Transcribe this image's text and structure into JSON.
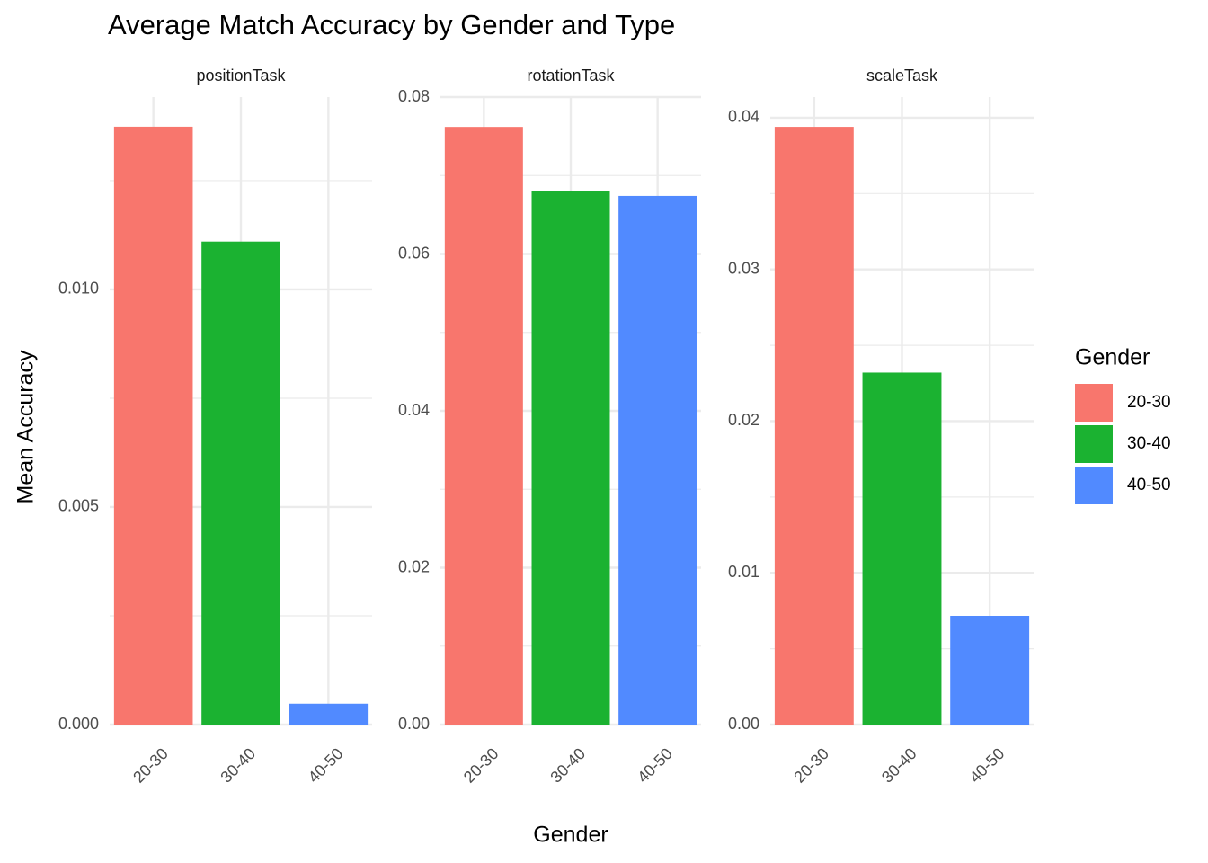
{
  "chart_data": {
    "type": "bar",
    "title": "Average Match Accuracy by Gender and Type",
    "x_label": "Gender",
    "y_label": "Mean Accuracy",
    "legend_title": "Gender",
    "categories": [
      "20-30",
      "30-40",
      "40-50"
    ],
    "colors": [
      "#f8766d",
      "#1bb231",
      "#518aff"
    ],
    "grid": true,
    "facets": [
      {
        "name": "positionTask",
        "values": [
          0.01374,
          0.0111,
          0.00048
        ],
        "ylim": [
          0,
          0.01442
        ],
        "yticks": [
          {
            "value": 0,
            "label": "0.000"
          },
          {
            "value": 0.005,
            "label": "0.005"
          },
          {
            "value": 0.01,
            "label": "0.010"
          }
        ]
      },
      {
        "name": "rotationTask",
        "values": [
          0.0762,
          0.068,
          0.0674
        ],
        "ylim": [
          0,
          0.08
        ],
        "yticks": [
          {
            "value": 0,
            "label": "0.00"
          },
          {
            "value": 0.02,
            "label": "0.02"
          },
          {
            "value": 0.04,
            "label": "0.04"
          },
          {
            "value": 0.06,
            "label": "0.06"
          },
          {
            "value": 0.08,
            "label": "0.08"
          }
        ]
      },
      {
        "name": "scaleTask",
        "values": [
          0.0394,
          0.0232,
          0.00717
        ],
        "ylim": [
          0,
          0.04136
        ],
        "yticks": [
          {
            "value": 0,
            "label": "0.00"
          },
          {
            "value": 0.01,
            "label": "0.01"
          },
          {
            "value": 0.02,
            "label": "0.02"
          },
          {
            "value": 0.03,
            "label": "0.03"
          },
          {
            "value": 0.04,
            "label": "0.04"
          }
        ]
      }
    ]
  }
}
